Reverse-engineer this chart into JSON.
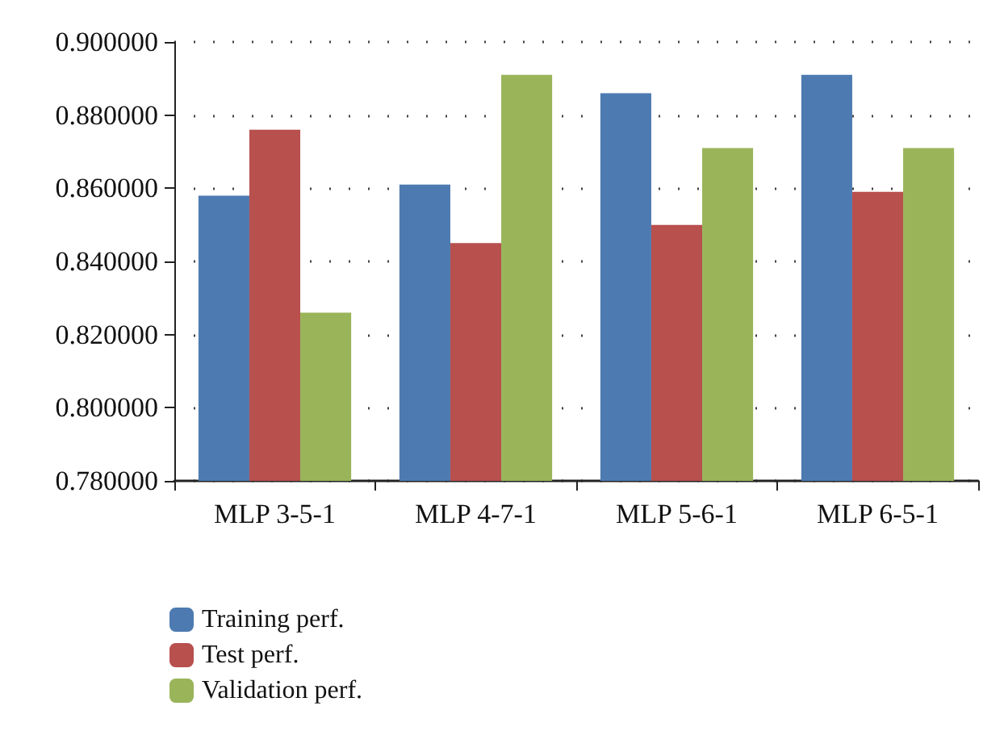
{
  "chart_data": {
    "type": "bar",
    "categories": [
      "MLP 3-5-1",
      "MLP 4-7-1",
      "MLP 5-6-1",
      "MLP 6-5-1"
    ],
    "series": [
      {
        "name": "Training perf.",
        "color": "#4d7bb1",
        "values": [
          0.858,
          0.861,
          0.886,
          0.891
        ]
      },
      {
        "name": "Test perf.",
        "color": "#b8504e",
        "values": [
          0.876,
          0.845,
          0.85,
          0.859
        ]
      },
      {
        "name": "Validation perf.",
        "color": "#9ab45a",
        "values": [
          0.826,
          0.891,
          0.871,
          0.871
        ]
      }
    ],
    "ylim": [
      0.78,
      0.9
    ],
    "yticks": [
      {
        "value": 0.78,
        "label": "0.780000"
      },
      {
        "value": 0.8,
        "label": "0.800000"
      },
      {
        "value": 0.82,
        "label": "0.820000"
      },
      {
        "value": 0.84,
        "label": "0.840000"
      },
      {
        "value": 0.86,
        "label": "0.860000"
      },
      {
        "value": 0.88,
        "label": "0.880000"
      },
      {
        "value": 0.9,
        "label": "0.900000"
      }
    ],
    "grid": "y",
    "legend": "bottom left"
  }
}
